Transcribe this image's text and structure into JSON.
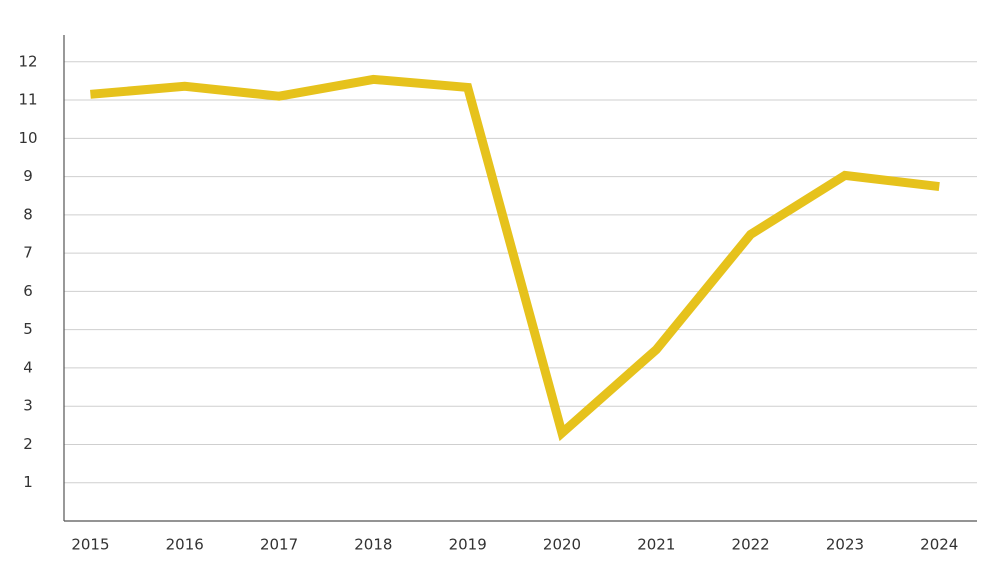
{
  "chart_data": {
    "type": "line",
    "x": [
      2015,
      2016,
      2017,
      2018,
      2019,
      2020,
      2021,
      2022,
      2023,
      2024
    ],
    "series": [
      {
        "color": "#e6c21c",
        "values": [
          11.15,
          11.36,
          11.1,
          11.54,
          11.33,
          2.3,
          4.48,
          7.49,
          9.03,
          8.74
        ]
      }
    ],
    "xlim": [
      2014.72,
      2024.4
    ],
    "xticks": [
      2015,
      2016,
      2017,
      2018,
      2019,
      2020,
      2021,
      2022,
      2023,
      2024
    ],
    "ylim": [
      0,
      12.7
    ],
    "yticks": [
      1,
      2,
      3,
      4,
      5,
      6,
      7,
      8,
      9,
      10,
      11,
      12
    ],
    "grid": true
  }
}
